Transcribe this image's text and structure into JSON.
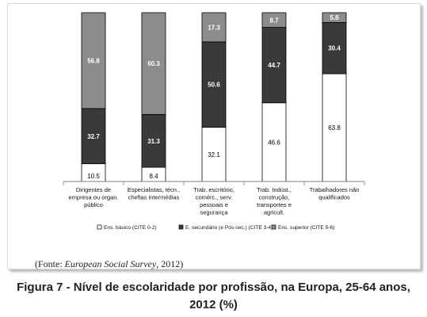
{
  "chart_data": {
    "type": "bar",
    "stacked": true,
    "categories": [
      [
        "Dirigentes de",
        "empresa ou organ.",
        "público"
      ],
      [
        "Especialistas, técn.,",
        "chefias intermédias"
      ],
      [
        "Trab. escritório,",
        "comérc., serv.",
        "pessoais e",
        "segurança"
      ],
      [
        "Trab.  Indúst.,",
        "construção,",
        "transportes e",
        "agricult."
      ],
      [
        "Trabalhadores não",
        "qualificados"
      ]
    ],
    "series": [
      {
        "name": "Ens. básico (CITE 0-2)",
        "values": [
          10.5,
          8.4,
          32.1,
          46.6,
          63.8
        ],
        "color": "#ffffff"
      },
      {
        "name": "E. secundário (e Pós-sec.) (CITE 3-4)",
        "values": [
          32.7,
          31.3,
          50.6,
          44.7,
          30.4
        ],
        "color": "#3a3a3a"
      },
      {
        "name": "Ens. superior (CITE 5-6)",
        "values": [
          56.8,
          60.3,
          17.3,
          8.7,
          5.8
        ],
        "color": "#8c8c8c"
      }
    ],
    "data_labels": [
      [
        "10.5",
        "8.4",
        "32.1",
        "46.6",
        "63.8"
      ],
      [
        "32.7",
        "31.3",
        "50.6",
        "44.7",
        "30.4"
      ],
      [
        "56.8",
        "60.3",
        "17.3",
        "8.7",
        "5.8"
      ]
    ],
    "ylim": [
      0,
      100
    ],
    "grid": false,
    "legend_position": "bottom"
  },
  "source": {
    "prefix": "(Fonte: ",
    "name": "European Social Survey",
    "suffix": ", 2012)"
  },
  "caption": {
    "line1": "Figura 7 - Nível de escolaridade por profissão, na Europa, 25-64 anos,",
    "line2": "2012 (%)"
  }
}
